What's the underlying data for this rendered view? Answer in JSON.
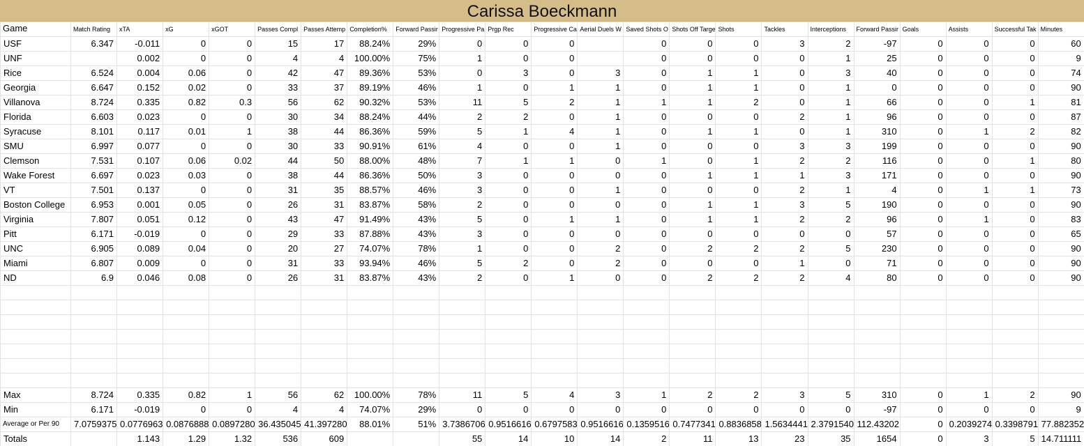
{
  "title": "Carissa Boeckmann",
  "table": {
    "headers": [
      "Game",
      "Match Rating",
      "xTA",
      "xG",
      "xGOT",
      "Passes Compl",
      "Passes Attemp",
      "Completion%",
      "Forward Passir",
      "Progressive Pa",
      "Prgp Rec",
      "Progressive Ca",
      "Aerial Duels W",
      "Saved Shots O",
      "Shots Off Targe",
      "Shots",
      "Tackles",
      "Interceptions",
      "Forward Passir",
      "Goals",
      "Assists",
      "Successful Tak",
      "Minutes"
    ],
    "rows": [
      [
        "USF",
        "6.347",
        "-0.011",
        "0",
        "0",
        "15",
        "17",
        "88.24%",
        "29%",
        "0",
        "0",
        "0",
        null,
        "0",
        "0",
        "0",
        "3",
        "2",
        "-97",
        "0",
        "0",
        "0",
        "60"
      ],
      [
        "UNF",
        null,
        "0.002",
        "0",
        "0",
        "4",
        "4",
        "100.00%",
        "75%",
        "1",
        "0",
        "0",
        null,
        "0",
        "0",
        "0",
        "0",
        "1",
        "25",
        "0",
        "0",
        "0",
        "9"
      ],
      [
        "Rice",
        "6.524",
        "0.004",
        "0.06",
        "0",
        "42",
        "47",
        "89.36%",
        "53%",
        "0",
        "3",
        "0",
        "3",
        "0",
        "1",
        "1",
        "0",
        "3",
        "40",
        "0",
        "0",
        "0",
        "74"
      ],
      [
        "Georgia",
        "6.647",
        "0.152",
        "0.02",
        "0",
        "33",
        "37",
        "89.19%",
        "46%",
        "1",
        "0",
        "1",
        "1",
        "0",
        "1",
        "1",
        "0",
        "1",
        "0",
        "0",
        "0",
        "0",
        "90"
      ],
      [
        "Villanova",
        "8.724",
        "0.335",
        "0.82",
        "0.3",
        "56",
        "62",
        "90.32%",
        "53%",
        "11",
        "5",
        "2",
        "1",
        "1",
        "1",
        "2",
        "0",
        "1",
        "66",
        "0",
        "0",
        "1",
        "81"
      ],
      [
        "Florida",
        "6.603",
        "0.023",
        "0",
        "0",
        "30",
        "34",
        "88.24%",
        "44%",
        "2",
        "2",
        "0",
        "1",
        "0",
        "0",
        "0",
        "2",
        "1",
        "96",
        "0",
        "0",
        "0",
        "87"
      ],
      [
        "Syracuse",
        "8.101",
        "0.117",
        "0.01",
        "1",
        "38",
        "44",
        "86.36%",
        "59%",
        "5",
        "1",
        "4",
        "1",
        "0",
        "1",
        "1",
        "0",
        "1",
        "310",
        "0",
        "1",
        "2",
        "82"
      ],
      [
        "SMU",
        "6.997",
        "0.077",
        "0",
        "0",
        "30",
        "33",
        "90.91%",
        "61%",
        "4",
        "0",
        "0",
        "1",
        "0",
        "0",
        "0",
        "3",
        "3",
        "199",
        "0",
        "0",
        "0",
        "90"
      ],
      [
        "Clemson",
        "7.531",
        "0.107",
        "0.06",
        "0.02",
        "44",
        "50",
        "88.00%",
        "48%",
        "7",
        "1",
        "1",
        "0",
        "1",
        "0",
        "1",
        "2",
        "2",
        "116",
        "0",
        "0",
        "1",
        "80"
      ],
      [
        "Wake Forest",
        "6.697",
        "0.023",
        "0.03",
        "0",
        "38",
        "44",
        "86.36%",
        "50%",
        "3",
        "0",
        "0",
        "0",
        "0",
        "1",
        "1",
        "1",
        "3",
        "171",
        "0",
        "0",
        "0",
        "90"
      ],
      [
        "VT",
        "7.501",
        "0.137",
        "0",
        "0",
        "31",
        "35",
        "88.57%",
        "46%",
        "3",
        "0",
        "0",
        "1",
        "0",
        "0",
        "0",
        "2",
        "1",
        "4",
        "0",
        "1",
        "1",
        "73"
      ],
      [
        "Boston College",
        "6.953",
        "0.001",
        "0.05",
        "0",
        "26",
        "31",
        "83.87%",
        "58%",
        "2",
        "0",
        "0",
        "0",
        "0",
        "1",
        "1",
        "3",
        "5",
        "190",
        "0",
        "0",
        "0",
        "90"
      ],
      [
        "Virginia",
        "7.807",
        "0.051",
        "0.12",
        "0",
        "43",
        "47",
        "91.49%",
        "43%",
        "5",
        "0",
        "1",
        "1",
        "0",
        "1",
        "1",
        "2",
        "2",
        "96",
        "0",
        "1",
        "0",
        "83"
      ],
      [
        "Pitt",
        "6.171",
        "-0.019",
        "0",
        "0",
        "29",
        "33",
        "87.88%",
        "43%",
        "3",
        "0",
        "0",
        "0",
        "0",
        "0",
        "0",
        "0",
        "0",
        "57",
        "0",
        "0",
        "0",
        "65"
      ],
      [
        "UNC",
        "6.905",
        "0.089",
        "0.04",
        "0",
        "20",
        "27",
        "74.07%",
        "78%",
        "1",
        "0",
        "0",
        "2",
        "0",
        "2",
        "2",
        "2",
        "5",
        "230",
        "0",
        "0",
        "0",
        "90"
      ],
      [
        "Miami",
        "6.807",
        "0.009",
        "0",
        "0",
        "31",
        "33",
        "93.94%",
        "46%",
        "5",
        "2",
        "0",
        "2",
        "0",
        "0",
        "0",
        "1",
        "0",
        "71",
        "0",
        "0",
        "0",
        "90"
      ],
      [
        "ND",
        "6.9",
        "0.046",
        "0.08",
        "0",
        "26",
        "31",
        "83.87%",
        "43%",
        "2",
        "0",
        "1",
        "0",
        "0",
        "2",
        "2",
        "2",
        "4",
        "80",
        "0",
        "0",
        "0",
        "90"
      ]
    ],
    "summary_rows": [
      [
        "Max",
        "8.724",
        "0.335",
        "0.82",
        "1",
        "56",
        "62",
        "100.00%",
        "78%",
        "11",
        "5",
        "4",
        "3",
        "1",
        "2",
        "2",
        "3",
        "5",
        "310",
        "0",
        "1",
        "2",
        "90"
      ],
      [
        "Min",
        "6.171",
        "-0.019",
        "0",
        "0",
        "4",
        "4",
        "74.07%",
        "29%",
        "0",
        "0",
        "0",
        "0",
        "0",
        "0",
        "0",
        "0",
        "0",
        "-97",
        "0",
        "0",
        "0",
        "9"
      ],
      [
        "Average or Per 90",
        "7.0759375",
        "0.0776963",
        "0.0876888",
        "0.0897280",
        "36.435045",
        "41.397280",
        "88.01%",
        "51%",
        "3.7386706",
        "0.9516616",
        "0.6797583",
        "0.9516616",
        "0.1359516",
        "0.7477341",
        "0.8836858",
        "1.5634441",
        "2.3791540",
        "112.43202",
        "0",
        "0.2039274",
        "0.3398791",
        "77.882352"
      ],
      [
        "Totals",
        null,
        "1.143",
        "1.29",
        "1.32",
        "536",
        "609",
        null,
        null,
        "55",
        "14",
        "10",
        "14",
        "2",
        "11",
        "13",
        "23",
        "35",
        "1654",
        "0",
        "3",
        "5",
        "14.711111"
      ]
    ]
  }
}
